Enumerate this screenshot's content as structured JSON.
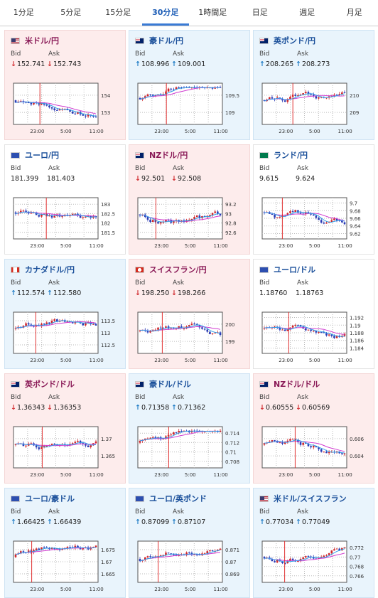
{
  "tabs": [
    {
      "label": "1分足",
      "active": false
    },
    {
      "label": "5分足",
      "active": false
    },
    {
      "label": "15分足",
      "active": false
    },
    {
      "label": "30分足",
      "active": true
    },
    {
      "label": "1時間足",
      "active": false
    },
    {
      "label": "日足",
      "active": false
    },
    {
      "label": "週足",
      "active": false
    },
    {
      "label": "月足",
      "active": false
    }
  ],
  "labels": {
    "bid": "Bid",
    "ask": "Ask"
  },
  "colors": {
    "candle_up": "#d0262a",
    "candle_down": "#2a3ab5",
    "ma_long": "#d03cd0",
    "ma_short": "#33a0e8",
    "arrow_down": "#d0262a",
    "arrow_up": "#1a79c4"
  },
  "cards": [
    {
      "name": "米ドル/円",
      "flag": "us-jp-flag",
      "trend": "down",
      "bid": "152.741",
      "ask": "152.743",
      "bid_dir": "down",
      "ask_dir": "down",
      "chart": {
        "y_ticks": [
          "154",
          "153"
        ],
        "x_ticks": [
          "23:00",
          "5:00",
          "11:00"
        ]
      }
    },
    {
      "name": "豪ドル/円",
      "flag": "au-jp-flag",
      "trend": "up",
      "bid": "108.996",
      "ask": "109.001",
      "bid_dir": "up",
      "ask_dir": "up",
      "chart": {
        "y_ticks": [
          "109.5",
          "109"
        ],
        "x_ticks": [
          "23:00",
          "5:00",
          "11:00"
        ]
      }
    },
    {
      "name": "英ポンド/円",
      "flag": "gb-jp-flag",
      "trend": "up",
      "bid": "208.265",
      "ask": "208.273",
      "bid_dir": "up",
      "ask_dir": "up",
      "chart": {
        "y_ticks": [
          "210",
          "209"
        ],
        "x_ticks": [
          "23:00",
          "5:00",
          "11:00"
        ]
      }
    },
    {
      "name": "ユーロ/円",
      "flag": "eu-jp-flag",
      "trend": "flat",
      "bid": "181.399",
      "ask": "181.403",
      "bid_dir": "none",
      "ask_dir": "none",
      "chart": {
        "y_ticks": [
          "183",
          "182.5",
          "182",
          "181.5"
        ],
        "x_ticks": [
          "23:00",
          "5:00",
          "11:00"
        ]
      }
    },
    {
      "name": "NZドル/円",
      "flag": "nz-jp-flag",
      "trend": "down",
      "bid": "92.501",
      "ask": "92.508",
      "bid_dir": "down",
      "ask_dir": "down",
      "chart": {
        "y_ticks": [
          "93.2",
          "93",
          "92.8",
          "92.6"
        ],
        "x_ticks": [
          "23:00",
          "5:00",
          "11:00"
        ]
      }
    },
    {
      "name": "ランド/円",
      "flag": "za-jp-flag",
      "trend": "flat",
      "bid": "9.615",
      "ask": "9.624",
      "bid_dir": "none",
      "ask_dir": "none",
      "chart": {
        "y_ticks": [
          "9.7",
          "9.68",
          "9.66",
          "9.64",
          "9.62"
        ],
        "x_ticks": [
          "23:00",
          "5:00",
          "11:00"
        ]
      }
    },
    {
      "name": "カナダドル/円",
      "flag": "ca-jp-flag",
      "trend": "up",
      "bid": "112.574",
      "ask": "112.580",
      "bid_dir": "up",
      "ask_dir": "up",
      "chart": {
        "y_ticks": [
          "113.5",
          "113",
          "112.5"
        ],
        "x_ticks": [
          "23:00",
          "5:00",
          "11:00"
        ]
      }
    },
    {
      "name": "スイスフラン/円",
      "flag": "ch-jp-flag",
      "trend": "down",
      "bid": "198.250",
      "ask": "198.266",
      "bid_dir": "down",
      "ask_dir": "down",
      "chart": {
        "y_ticks": [
          "200",
          "199"
        ],
        "x_ticks": [
          "23:00",
          "5:00",
          "11:00"
        ]
      }
    },
    {
      "name": "ユーロ/ドル",
      "flag": "eu-us-flag",
      "trend": "flat",
      "bid": "1.18760",
      "ask": "1.18763",
      "bid_dir": "none",
      "ask_dir": "none",
      "chart": {
        "y_ticks": [
          "1.192",
          "1.19",
          "1.188",
          "1.186",
          "1.184"
        ],
        "x_ticks": [
          "23:00",
          "5:00",
          "11:00"
        ]
      }
    },
    {
      "name": "英ポンド/ドル",
      "flag": "gb-us-flag",
      "trend": "down",
      "bid": "1.36343",
      "ask": "1.36353",
      "bid_dir": "down",
      "ask_dir": "down",
      "chart": {
        "y_ticks": [
          "1.37",
          "1.365"
        ],
        "x_ticks": [
          "23:00",
          "5:00",
          "11:00"
        ]
      }
    },
    {
      "name": "豪ドル/ドル",
      "flag": "au-us-flag",
      "trend": "up",
      "bid": "0.71358",
      "ask": "0.71362",
      "bid_dir": "up",
      "ask_dir": "up",
      "chart": {
        "y_ticks": [
          "0.714",
          "0.712",
          "0.71",
          "0.708"
        ],
        "x_ticks": [
          "23:00",
          "5:00",
          "11:00"
        ]
      }
    },
    {
      "name": "NZドル/ドル",
      "flag": "nz-us-flag",
      "trend": "down",
      "bid": "0.60555",
      "ask": "0.60569",
      "bid_dir": "down",
      "ask_dir": "down",
      "chart": {
        "y_ticks": [
          "0.606",
          "0.604"
        ],
        "x_ticks": [
          "23:00",
          "5:00",
          "11:00"
        ]
      }
    },
    {
      "name": "ユーロ/豪ドル",
      "flag": "eu-au-flag",
      "trend": "up",
      "bid": "1.66425",
      "ask": "1.66439",
      "bid_dir": "up",
      "ask_dir": "up",
      "chart": {
        "y_ticks": [
          "1.675",
          "1.67",
          "1.665"
        ],
        "x_ticks": [
          "23:00",
          "5:00",
          "11:00"
        ]
      }
    },
    {
      "name": "ユーロ/英ポンド",
      "flag": "eu-gb-flag",
      "trend": "up",
      "bid": "0.87099",
      "ask": "0.87107",
      "bid_dir": "up",
      "ask_dir": "up",
      "chart": {
        "y_ticks": [
          "0.871",
          "0.87",
          "0.869"
        ],
        "x_ticks": [
          "23:00",
          "5:00",
          "11:00"
        ]
      }
    },
    {
      "name": "米ドル/スイスフラン",
      "flag": "us-ch-flag",
      "trend": "up",
      "bid": "0.77034",
      "ask": "0.77049",
      "bid_dir": "up",
      "ask_dir": "up",
      "chart": {
        "y_ticks": [
          "0.772",
          "0.77",
          "0.768",
          "0.766"
        ],
        "x_ticks": [
          "23:00",
          "5:00",
          "11:00"
        ]
      }
    }
  ]
}
